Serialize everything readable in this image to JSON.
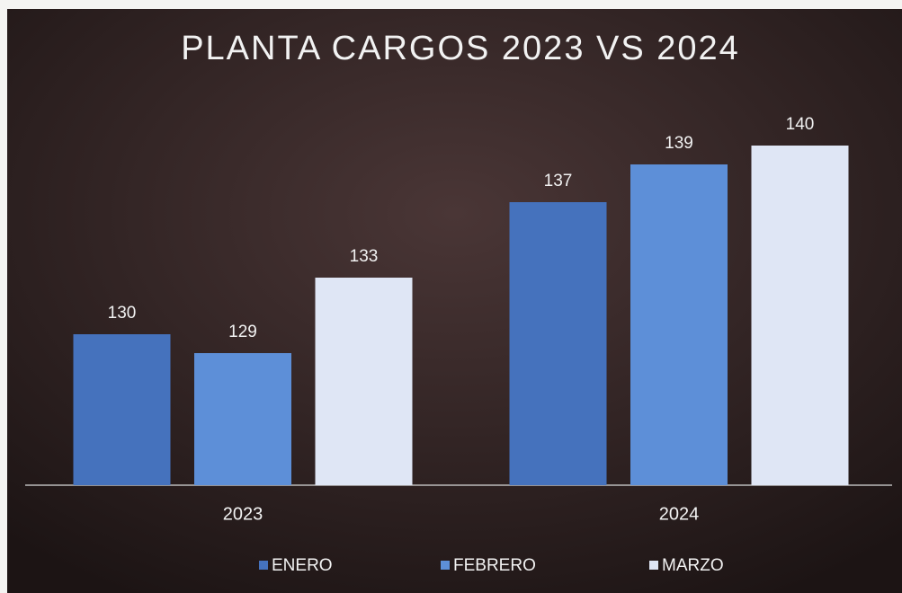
{
  "chart_data": {
    "type": "bar",
    "title": "PLANTA CARGOS 2023 VS 2024",
    "categories": [
      "2023",
      "2024"
    ],
    "series": [
      {
        "name": "ENERO",
        "color": "#4572bd",
        "values": [
          130,
          137
        ]
      },
      {
        "name": "FEBRERO",
        "color": "#5d8fd8",
        "values": [
          129,
          139
        ]
      },
      {
        "name": "MARZO",
        "color": "#dfe6f5",
        "values": [
          133,
          140
        ]
      }
    ],
    "ylim": [
      122,
      142
    ],
    "legend": "bottom"
  }
}
